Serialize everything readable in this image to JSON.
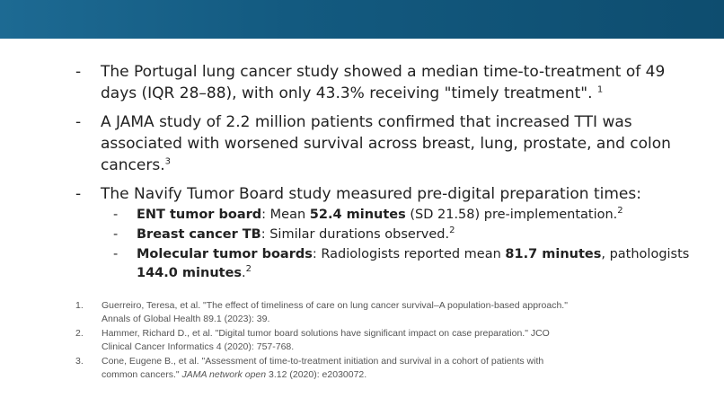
{
  "bullets": {
    "b1": {
      "text": "The Portugal lung cancer study showed a median time-to-treatment of 49 days (IQR 28–88), with only 43.3% receiving \"timely treatment\". ",
      "sup": "1"
    },
    "b2": {
      "text": "A JAMA study of 2.2 million patients confirmed that increased TTI was associated with worsened survival across breast, lung, prostate, and colon cancers.",
      "sup": "3"
    },
    "b3": {
      "text": "The Navify Tumor Board study measured pre-digital preparation times:",
      "sub": [
        {
          "bold1": "ENT tumor board",
          "t1": ": Mean ",
          "bold2": "52.4 minutes",
          "t2": " (SD 21.58) pre-implementation.",
          "sup": "2"
        },
        {
          "bold1": "Breast cancer TB",
          "t1": ": Similar durations observed.",
          "sup": "2"
        },
        {
          "bold1": "Molecular tumor boards",
          "t1": ": Radiologists reported mean ",
          "bold2": "81.7 minutes",
          "t2": ", pathologists ",
          "bold3": "144.0 minutes",
          "t3": ".",
          "sup": "2"
        }
      ]
    }
  },
  "dash": "-",
  "references": [
    {
      "num": "1.",
      "text": "Guerreiro, Teresa, et al. \"The effect of timeliness of care on lung cancer survival–A population-based approach.\" Annals of Global Health 89.1 (2023): 39."
    },
    {
      "num": "2.",
      "text": "Hammer, Richard D., et al. \"Digital tumor board solutions have significant impact on case preparation.\" JCO Clinical Cancer Informatics 4 (2020): 757-768."
    },
    {
      "num": "3.",
      "pre": "Cone, Eugene B., et al. \"Assessment of time-to-treatment initiation and survival in a cohort of patients with common cancers.\" ",
      "italic": "JAMA network open",
      "post": " 3.12 (2020): e2030072."
    }
  ],
  "colors": {
    "header_bar": "#135a80",
    "body_text": "#222222",
    "reference_text": "#555555"
  }
}
